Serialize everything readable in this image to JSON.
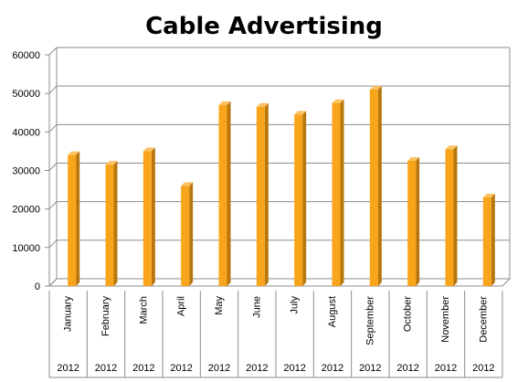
{
  "chart_data": {
    "type": "bar",
    "title": "Cable Advertising",
    "categories": [
      "January",
      "February",
      "March",
      "April",
      "May",
      "June",
      "July",
      "August",
      "September",
      "October",
      "November",
      "December"
    ],
    "year_labels": [
      "2012",
      "2012",
      "2012",
      "2012",
      "2012",
      "2012",
      "2012",
      "2012",
      "2012",
      "2012",
      "2012",
      "2012"
    ],
    "series": [
      {
        "values": [
          34000,
          31500,
          35000,
          26000,
          47000,
          46500,
          44500,
          47500,
          51000,
          32500,
          35500,
          23000
        ]
      }
    ],
    "ylim": [
      0,
      60000
    ],
    "yticks": [
      "0",
      "10000",
      "20000",
      "30000",
      "40000",
      "50000",
      "60000"
    ],
    "grid": true,
    "colors": {
      "bar_front": "#F9A51B",
      "bar_side": "#B8770D",
      "bar_top": "#FCC264",
      "grid": "#8C8C8C"
    }
  }
}
